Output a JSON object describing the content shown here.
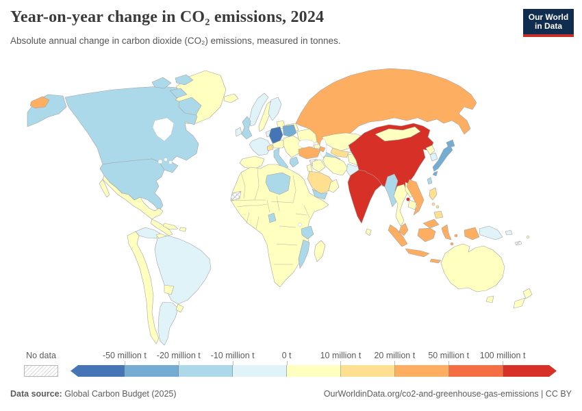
{
  "header": {
    "title": "Year-on-year change in CO₂ emissions, 2024",
    "subtitle": "Absolute annual change in carbon dioxide (CO₂) emissions, measured in tonnes.",
    "logo": {
      "line1": "Our World",
      "line2": "in Data",
      "bg_color": "#102d50",
      "accent_color": "#c62e28"
    }
  },
  "legend": {
    "no_data_label": "No data",
    "tick_labels": [
      "-50 million t",
      "-20 million t",
      "-10 million t",
      "0 t",
      "10 million t",
      "20 million t",
      "50 million t",
      "100 million t"
    ]
  },
  "footer": {
    "source_label": "Data source:",
    "source_text": " Global Carbon Budget (2025)",
    "link_text": "OurWorldinData.org/co2-and-greenhouse-gas-emissions | CC BY"
  },
  "chart_data": {
    "type": "choropleth",
    "title": "Year-on-year change in CO₂ emissions, 2024",
    "metric": "Absolute annual change in carbon dioxide (CO₂) emissions, tonnes",
    "year": 2024,
    "legend_position": "bottom",
    "bins": [
      {
        "range": "< -50 million t",
        "color": "#4575b4"
      },
      {
        "range": "-50 to -20 million t",
        "color": "#74add1"
      },
      {
        "range": "-20 to -10 million t",
        "color": "#abd9e9"
      },
      {
        "range": "-10 to 0 million t",
        "color": "#e0f3f8"
      },
      {
        "range": "0 to 10 million t",
        "color": "#ffffbf"
      },
      {
        "range": "10 to 20 million t",
        "color": "#fee090"
      },
      {
        "range": "20 to 50 million t",
        "color": "#fdae61"
      },
      {
        "range": "50 to 100 million t",
        "color": "#f46d43"
      },
      {
        "range": "> 100 million t",
        "color": "#d73027"
      }
    ],
    "no_data_color": "no-data",
    "countries": {
      "greenland": "#ffffbf",
      "canada": "#abd9e9",
      "usa": "#abd9e9",
      "mexico": "#ffffbf",
      "central-america": "#ffffbf",
      "cuba": "#ffffbf",
      "hispaniola": "#ffffbf",
      "venezuela": "#e0f3f8",
      "guyana": "#ffffbf",
      "suriname": "no-data",
      "brazil": "#e0f3f8",
      "andean-countries": "#ffffbf",
      "paraguay": "#ffffbf",
      "argentina": "#e0f3f8",
      "uruguay": "#ffffbf",
      "iceland": "#ffffbf",
      "uk": "#abd9e9",
      "ireland": "#e0f3f8",
      "norway": "#e0f3f8",
      "sweden": "#ffffbf",
      "finland": "#e0f3f8",
      "baltics": "#ffffbf",
      "belarus": "#ffffbf",
      "france": "#e0f3f8",
      "benelux": "#e0f3f8",
      "germany": "#4575b4",
      "poland": "#74add1",
      "czech-austria": "#ffffbf",
      "switzerland": "#fee090",
      "italy": "#abd9e9",
      "spain": "#ffffbf",
      "balkans": "#ffffbf",
      "greece": "#abd9e9",
      "ukraine": "#ffffbf",
      "russia": "#fdae61",
      "kazakhstan": "#ffffbf",
      "uzbekistan": "#fee090",
      "turkmenistan": "#abd9e9",
      "kyrgyzstan": "#ffffbf",
      "georgia": "#ffffbf",
      "azerbaijan": "#fdae61",
      "turkey": "#fdae61",
      "syria": "no-data",
      "israel-jordan": "#ffffbf",
      "iraq": "#ffffbf",
      "iran": "#ffffbf",
      "saudi-arabia": "#fee090",
      "yemen": "#abd9e9",
      "oman": "#ffffbf",
      "afghanistan": "#ffffbf",
      "pakistan": "#e0f3f8",
      "india": "#d73027",
      "nepal": "#fee090",
      "bangladesh": "#fee090",
      "sri-lanka": "#ffffbf",
      "china": "#d73027",
      "mongolia": "#ffffbf",
      "north-korea": "#ffffbf",
      "south-korea": "#e0f3f8",
      "japan": "#74add1",
      "taiwan": "#abd9e9",
      "myanmar": "#abd9e9",
      "thailand": "#ffffbf",
      "laos": "#ffffbf",
      "vietnam": "#fdae61",
      "cambodia": "#ffffbf",
      "malaysia": "#fdae61",
      "indonesia": "#fdae61",
      "philippines": "#fee090",
      "papua-new-guinea": "#e0f3f8",
      "africa-other": "#ffffbf",
      "western-sahara": "no-data",
      "libya": "#abd9e9",
      "cameroon": "#abd9e9",
      "tanzania": "#abd9e9",
      "mozambique": "#abd9e9",
      "madagascar": "#ffffbf",
      "australia": "#ffffbf",
      "new-zealand": "#ffffbf",
      "new-caledonia": "no-data",
      "fiji": "#ffffbf"
    }
  }
}
